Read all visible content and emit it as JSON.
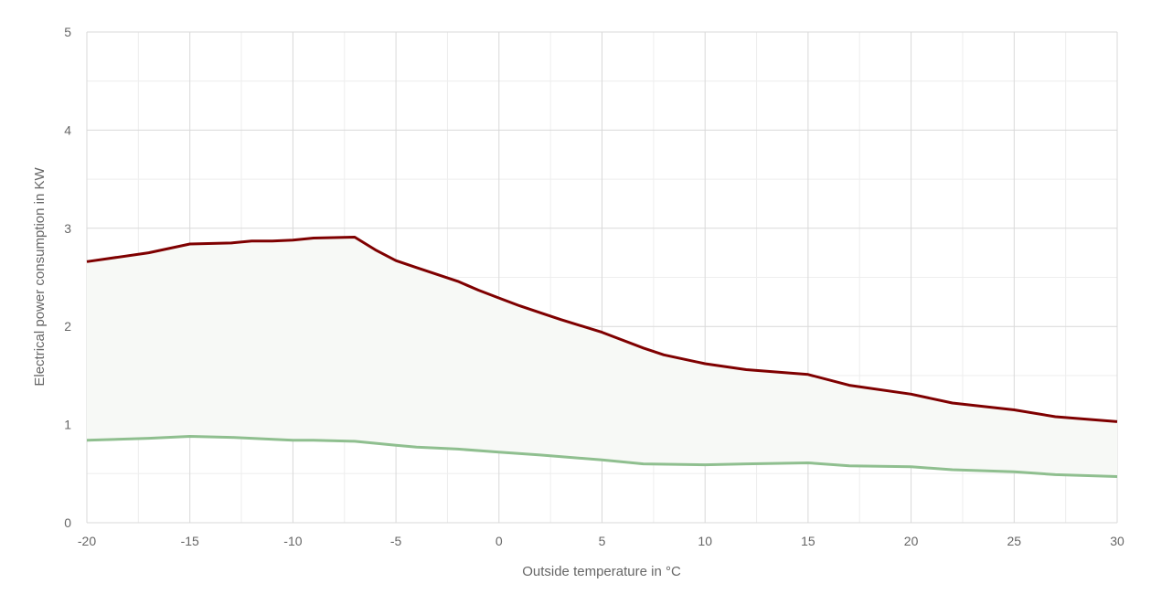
{
  "chart_data": {
    "type": "area",
    "xlabel": "Outside temperature in °C",
    "ylabel": "Electrical power consumption in KW",
    "xlim": [
      -20,
      30
    ],
    "ylim": [
      0,
      5
    ],
    "x_ticks": [
      -20,
      -15,
      -10,
      -5,
      0,
      5,
      10,
      15,
      20,
      25,
      30
    ],
    "y_ticks": [
      0,
      1,
      2,
      3,
      4,
      5
    ],
    "grid": true,
    "legend": "none",
    "colors": {
      "upper": "#7f0000",
      "lower": "#8fbf8f",
      "fill": "#f7f9f6",
      "grid_major": "#d9d9d9",
      "grid_minor": "#eeeeee"
    },
    "series": [
      {
        "x": [
          -20,
          -17,
          -15,
          -13,
          -12,
          -11,
          -10,
          -9,
          -7,
          -6,
          -5,
          -4,
          -2,
          -1,
          0,
          1,
          2,
          3,
          5,
          7,
          8,
          10,
          12,
          15,
          17,
          20,
          22,
          25,
          27,
          30
        ],
        "values": [
          2.66,
          2.75,
          2.84,
          2.85,
          2.87,
          2.87,
          2.88,
          2.9,
          2.91,
          2.78,
          2.67,
          2.6,
          2.46,
          2.37,
          2.29,
          2.21,
          2.14,
          2.07,
          1.94,
          1.78,
          1.71,
          1.62,
          1.56,
          1.51,
          1.4,
          1.31,
          1.22,
          1.15,
          1.08,
          1.03
        ]
      },
      {
        "x": [
          -20,
          -17,
          -15,
          -13,
          -12,
          -10,
          -9,
          -7,
          -5,
          -4,
          -2,
          0,
          2,
          5,
          7,
          10,
          12,
          15,
          17,
          20,
          22,
          25,
          27,
          30
        ],
        "values": [
          0.84,
          0.86,
          0.88,
          0.87,
          0.86,
          0.84,
          0.84,
          0.83,
          0.79,
          0.77,
          0.75,
          0.72,
          0.69,
          0.64,
          0.6,
          0.59,
          0.6,
          0.61,
          0.58,
          0.57,
          0.54,
          0.52,
          0.49,
          0.47
        ]
      }
    ]
  }
}
